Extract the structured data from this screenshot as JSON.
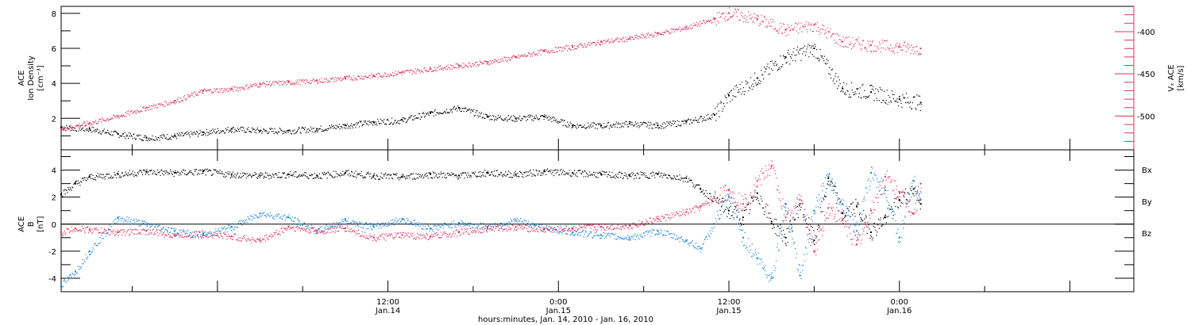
{
  "colors": {
    "black": "#000000",
    "blue": "#1a86d8",
    "pink": "#e0305a"
  },
  "x_axis": {
    "label": "hours:minutes, Jan. 14, 2010 - Jan. 16, 2010",
    "range_hours": [
      -11,
      64.5
    ],
    "ticks": [
      {
        "hour": 12,
        "time": "12:00",
        "date": "Jan.14"
      },
      {
        "hour": 24,
        "time": "0:00",
        "date": "Jan.15"
      },
      {
        "hour": 36,
        "time": "12:00",
        "date": "Jan.15"
      },
      {
        "hour": 48,
        "time": "0:00",
        "date": "Jan.16"
      }
    ]
  },
  "chart_data": [
    {
      "type": "scatter",
      "panel": "top",
      "ylabel_lines": [
        "ACE",
        "Ion Density",
        "[cm⁻³]"
      ],
      "ylim": [
        0.2,
        8.4
      ],
      "yticks": [
        2,
        4,
        6,
        8
      ],
      "y2label_lines": [
        "Vₓ ACE",
        "[km/s]"
      ],
      "y2lim": [
        -540,
        -370
      ],
      "y2ticks": [
        -400,
        -450,
        -500
      ],
      "series": [
        {
          "name": "",
          "axis": "left",
          "color": "#000000",
          "x": [
            -11,
            -9,
            -7,
            -5,
            -3,
            -1,
            1,
            3,
            5,
            7,
            9,
            11,
            13,
            15,
            17,
            19,
            21,
            23,
            25,
            27,
            29,
            31,
            33,
            35,
            36,
            38,
            40,
            42,
            44,
            46,
            48,
            49.5
          ],
          "y": [
            1.5,
            1.4,
            1.1,
            0.9,
            1.0,
            1.2,
            1.4,
            1.3,
            1.3,
            1.4,
            1.6,
            1.8,
            1.9,
            2.3,
            2.6,
            2.1,
            2.0,
            2.1,
            1.6,
            1.6,
            1.7,
            1.6,
            1.8,
            2.2,
            3.3,
            4.3,
            5.5,
            6.0,
            3.7,
            3.5,
            3.1,
            2.9
          ]
        },
        {
          "name": "",
          "axis": "right",
          "color": "#e0305a",
          "x": [
            -11,
            -9,
            -7,
            -5,
            -3,
            -1,
            1,
            3,
            5,
            7,
            9,
            11,
            13,
            15,
            17,
            19,
            21,
            23,
            25,
            27,
            29,
            31,
            33,
            35,
            36,
            38,
            40,
            42,
            44,
            46,
            48,
            49.5
          ],
          "y": [
            -515,
            -508,
            -500,
            -490,
            -482,
            -470,
            -468,
            -462,
            -460,
            -458,
            -455,
            -452,
            -448,
            -444,
            -440,
            -436,
            -430,
            -423,
            -418,
            -412,
            -408,
            -402,
            -395,
            -385,
            -378,
            -385,
            -398,
            -392,
            -412,
            -416,
            -418,
            -420
          ]
        }
      ]
    },
    {
      "type": "scatter",
      "panel": "bottom",
      "ylabel_lines": [
        "ACE",
        "B",
        "[nT]"
      ],
      "ylim": [
        -5,
        5.5
      ],
      "yticks": [
        4,
        2,
        0,
        -2,
        -4
      ],
      "zero_line": true,
      "legend_position": "right",
      "series": [
        {
          "name": "Bx",
          "color": "#000000",
          "x": [
            -11,
            -10,
            -9,
            -7,
            -5,
            -3,
            -1,
            1,
            3,
            5,
            7,
            9,
            11,
            13,
            15,
            17,
            19,
            21,
            23,
            25,
            27,
            29,
            31,
            33,
            34,
            36,
            37,
            38,
            39,
            40,
            41,
            42,
            43,
            44,
            45,
            46,
            47,
            48,
            49,
            49.5
          ],
          "y": [
            2.2,
            3.0,
            3.5,
            3.7,
            3.9,
            3.8,
            3.9,
            3.7,
            3.6,
            3.7,
            3.6,
            3.8,
            3.6,
            3.5,
            3.7,
            3.6,
            3.8,
            3.7,
            3.9,
            3.8,
            3.7,
            3.6,
            3.7,
            3.4,
            2.6,
            1.0,
            0.5,
            2.3,
            0.2,
            -1.0,
            1.5,
            -1.2,
            3.4,
            0.8,
            1.3,
            -0.6,
            0.5,
            1.8,
            2.6,
            1.5
          ]
        },
        {
          "name": "By",
          "color": "#1a86d8",
          "x": [
            -11,
            -10,
            -9,
            -7,
            -5,
            -3,
            -1,
            1,
            3,
            5,
            7,
            9,
            11,
            13,
            15,
            17,
            19,
            21,
            23,
            25,
            27,
            29,
            31,
            33,
            34,
            36,
            37,
            38,
            39,
            40,
            41,
            42,
            43,
            44,
            45,
            46,
            47,
            48,
            49,
            49.5
          ],
          "y": [
            -4.5,
            -3.5,
            -2.0,
            0.5,
            0.0,
            -0.5,
            -0.8,
            -0.2,
            0.8,
            0.5,
            -0.5,
            0.3,
            -0.2,
            0.4,
            -0.3,
            0.1,
            -0.2,
            0.3,
            -0.3,
            -0.6,
            -0.8,
            -1.0,
            -0.5,
            -1.2,
            -1.8,
            2.0,
            -1.0,
            -2.5,
            -4.0,
            1.5,
            -3.8,
            1.0,
            3.5,
            1.5,
            -0.5,
            3.8,
            2.5,
            -1.0,
            3.2,
            1.8
          ]
        },
        {
          "name": "Bz",
          "color": "#e0305a",
          "x": [
            -11,
            -10,
            -9,
            -7,
            -5,
            -3,
            -1,
            1,
            3,
            5,
            7,
            9,
            11,
            13,
            15,
            17,
            19,
            21,
            23,
            25,
            27,
            29,
            31,
            33,
            34,
            36,
            37,
            38,
            39,
            40,
            41,
            42,
            43,
            44,
            45,
            46,
            47,
            48,
            49,
            49.5
          ],
          "y": [
            -0.6,
            -0.3,
            -0.4,
            -0.6,
            -0.5,
            -0.8,
            -0.7,
            -0.9,
            -1.2,
            -0.2,
            -0.5,
            -0.3,
            -1.0,
            -0.8,
            -0.9,
            -0.6,
            -0.3,
            -0.2,
            -0.4,
            -0.3,
            -0.2,
            -0.1,
            0.4,
            0.9,
            1.3,
            2.5,
            1.5,
            3.2,
            4.3,
            0.5,
            1.8,
            -2.0,
            1.2,
            0.3,
            -1.5,
            1.0,
            3.5,
            2.4,
            0.8,
            3.0
          ]
        }
      ]
    }
  ]
}
